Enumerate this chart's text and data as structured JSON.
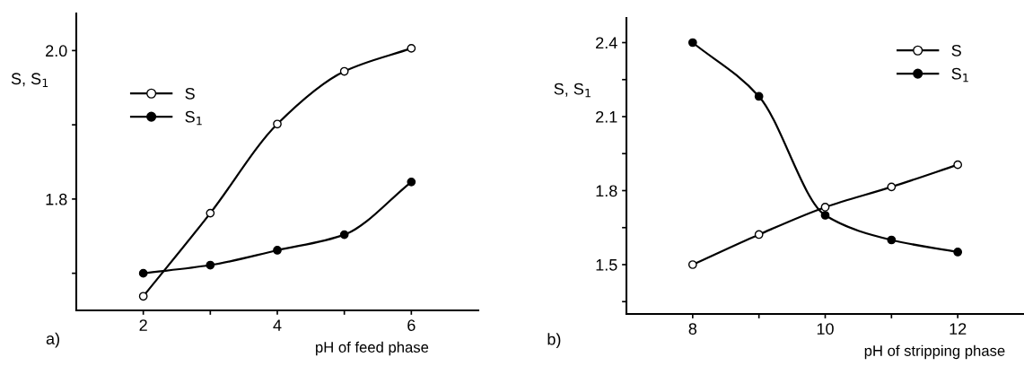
{
  "chart_data": [
    {
      "type": "line",
      "xlabel": "pH of feed phase",
      "ylabel": "S, S$_{1}$",
      "x": [
        2,
        3,
        4,
        5,
        6
      ],
      "series": [
        {
          "name": "S",
          "color": "#000000",
          "marker": "circle-open",
          "values": [
            1.669,
            1.781,
            1.901,
            1.972,
            2.003
          ]
        },
        {
          "name": "S$_{1}$",
          "color": "#000000",
          "marker": "circle",
          "values": [
            1.7,
            1.711,
            1.731,
            1.752,
            1.823
          ]
        }
      ],
      "xlim": [
        1,
        7
      ],
      "xticks": [
        2,
        {
          "value": 3,
          "label": null
        },
        4,
        {
          "value": 5,
          "label": null
        },
        6
      ],
      "ylim": [
        1.65,
        2.05
      ],
      "yticks": [
        {
          "value": 1.7,
          "label": null
        },
        {
          "value": 1.8,
          "label": "1.8"
        },
        {
          "value": 1.9,
          "label": null
        },
        {
          "value": 2.0,
          "label": "2.0"
        }
      ],
      "line_style": "solid",
      "legend": "upper left",
      "grid": false,
      "annotations": [
        "a)"
      ]
    },
    {
      "type": "line",
      "xlabel": "pH of stripping phase",
      "ylabel": "S, S$_{1}$",
      "x": [
        8,
        9,
        10,
        11,
        12
      ],
      "series": [
        {
          "name": "S",
          "color": "#000000",
          "marker": "circle-open",
          "values": [
            1.5,
            1.622,
            1.733,
            1.815,
            1.905
          ]
        },
        {
          "name": "S$_{1}$",
          "color": "#000000",
          "marker": "circle",
          "values": [
            2.4,
            2.182,
            1.7,
            1.6,
            1.551
          ]
        }
      ],
      "xlim": [
        7,
        13
      ],
      "xticks": [
        8,
        {
          "value": 9,
          "label": null
        },
        10,
        {
          "value": 11,
          "label": null
        },
        12
      ],
      "ylim": [
        1.3,
        2.5
      ],
      "yticks": [
        {
          "value": 1.35,
          "label": null
        },
        1.5,
        {
          "value": 1.65,
          "label": null
        },
        1.8,
        {
          "value": 1.95,
          "label": null
        },
        2.1,
        {
          "value": 2.25,
          "label": null
        },
        2.4
      ],
      "line_style": "solid",
      "legend": "upper right",
      "grid": false,
      "annotations": [
        "b)"
      ]
    }
  ]
}
